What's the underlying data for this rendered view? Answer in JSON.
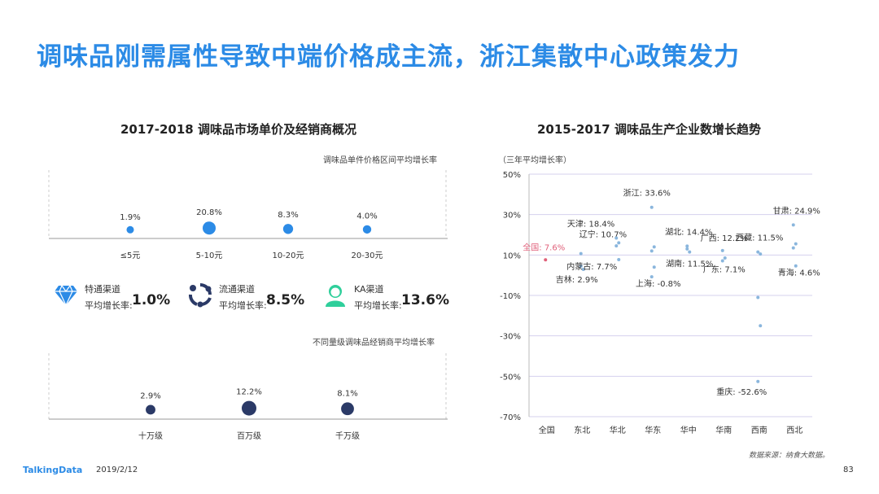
{
  "page": {
    "title": "调味品刚需属性导致中端价格成主流，浙江集散中心政策发力",
    "brand": "TalkingData",
    "date": "2019/2/12",
    "page_number": "83",
    "source": "数据来源：纳食大数据。",
    "accent": "#2c8be6"
  },
  "left": {
    "subtitle": "2017-2018  调味品市场单价及经销商概况",
    "price_caption": "调味品单件价格区间平均增长率",
    "dealer_caption": "不同量级调味品经销商平均增长率",
    "channels": [
      {
        "icon": "diamond-icon",
        "name": "特通渠道",
        "avg_label": "平均增长率:",
        "value": "1.0%",
        "color": "#2c8be6"
      },
      {
        "icon": "cycle-icon",
        "name": "流通渠道",
        "avg_label": "平均增长率:",
        "value": "8.5%",
        "color": "#2b3a67"
      },
      {
        "icon": "person-icon",
        "name": "KA渠道",
        "avg_label": "平均增长率:",
        "value": "13.6%",
        "color": "#2fcf9b"
      }
    ]
  },
  "chart_data": [
    {
      "type": "scatter",
      "title": "",
      "categories": [
        "≤5元",
        "5-10元",
        "10-20元",
        "20-30元"
      ],
      "values": [
        1.9,
        20.8,
        8.3,
        4.0
      ],
      "labels": [
        "1.9%",
        "20.8%",
        "8.3%",
        "4.0%"
      ],
      "color": "#2c8be6",
      "encoding": "bubble size"
    },
    {
      "type": "scatter",
      "title": "",
      "categories": [
        "十万级",
        "百万级",
        "千万级"
      ],
      "values": [
        2.9,
        12.2,
        8.1
      ],
      "labels": [
        "2.9%",
        "12.2%",
        "8.1%"
      ],
      "color": "#2b3a67",
      "encoding": "bubble size"
    },
    {
      "type": "scatter",
      "title": "2015-2017  调味品生产企业数增长趋势",
      "ylabel": "（三年平均增长率）",
      "ylim": [
        -70,
        50
      ],
      "yticks": [
        "50%",
        "30%",
        "10%",
        "-10%",
        "-30%",
        "-50%",
        "-70%"
      ],
      "ytick_values": [
        50,
        30,
        10,
        -10,
        -30,
        -50,
        -70
      ],
      "categories": [
        "全国",
        "东北",
        "华北",
        "华东",
        "华中",
        "华南",
        "西南",
        "西北"
      ],
      "grid": true,
      "points": [
        {
          "category": "全国",
          "value": 7.6,
          "label": "全国: 7.6%",
          "highlight": true
        },
        {
          "category": "东北",
          "value": 10.7,
          "label": "辽宁: 10.7%"
        },
        {
          "category": "东北",
          "value": 2.9,
          "label": "吉林: 2.9%"
        },
        {
          "category": "东北",
          "value": 4.5
        },
        {
          "category": "华北",
          "value": 18.4,
          "label": "天津: 18.4%"
        },
        {
          "category": "华北",
          "value": 16.0
        },
        {
          "category": "华北",
          "value": 14.5
        },
        {
          "category": "华北",
          "value": 7.7,
          "label": "内蒙古: 7.7%"
        },
        {
          "category": "华东",
          "value": 33.6,
          "label": "浙江: 33.6%"
        },
        {
          "category": "华东",
          "value": 14.0
        },
        {
          "category": "华东",
          "value": 12.0
        },
        {
          "category": "华东",
          "value": 4.0
        },
        {
          "category": "华东",
          "value": -0.8,
          "label": "上海: -0.8%"
        },
        {
          "category": "华中",
          "value": 14.4,
          "label": "湖北: 14.4%"
        },
        {
          "category": "华中",
          "value": 11.5,
          "label": "湖南: 11.5%"
        },
        {
          "category": "华中",
          "value": 13.0
        },
        {
          "category": "华南",
          "value": 12.2,
          "label": "广西: 12.2%"
        },
        {
          "category": "华南",
          "value": 8.5
        },
        {
          "category": "华南",
          "value": 7.1,
          "label": "广东: 7.1%"
        },
        {
          "category": "西南",
          "value": 11.5,
          "label": "西藏: 11.5%"
        },
        {
          "category": "西南",
          "value": 10.5
        },
        {
          "category": "西南",
          "value": -11.0
        },
        {
          "category": "西南",
          "value": -25.0
        },
        {
          "category": "西南",
          "value": -52.6,
          "label": "重庆: -52.6%"
        },
        {
          "category": "西北",
          "value": 24.9,
          "label": "甘肃: 24.9%"
        },
        {
          "category": "西北",
          "value": 15.5
        },
        {
          "category": "西北",
          "value": 13.5
        },
        {
          "category": "西北",
          "value": 4.6,
          "label": "青海: 4.6%"
        }
      ],
      "color": "#8ab6dd",
      "highlight_color": "#e0607a"
    }
  ]
}
